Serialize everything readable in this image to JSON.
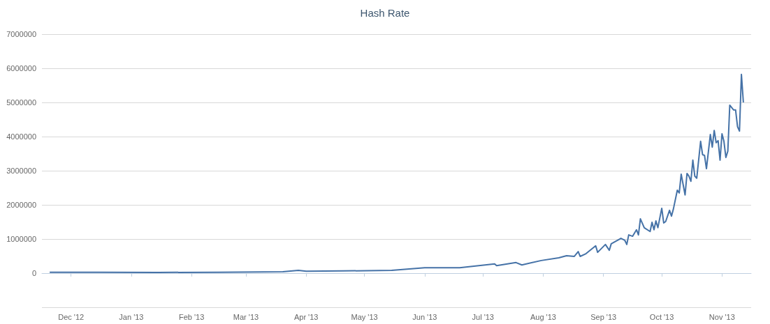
{
  "chart_data": {
    "type": "line",
    "title": "Hash Rate",
    "x": [
      "2012-11-20",
      "2012-12-15",
      "2013-01-15",
      "2013-02-15",
      "2013-03-10",
      "2013-03-20",
      "2013-03-28",
      "2013-04-01",
      "2013-04-20",
      "2013-05-15",
      "2013-06-01",
      "2013-06-19",
      "2013-07-07",
      "2013-07-08",
      "2013-07-18",
      "2013-07-21",
      "2013-07-31",
      "2013-08-09",
      "2013-08-13",
      "2013-08-17",
      "2013-08-19",
      "2013-08-20",
      "2013-08-23",
      "2013-08-28",
      "2013-08-29",
      "2013-09-02",
      "2013-09-04",
      "2013-09-05",
      "2013-09-10",
      "2013-09-12",
      "2013-09-13",
      "2013-09-14",
      "2013-09-16",
      "2013-09-18",
      "2013-09-19",
      "2013-09-20",
      "2013-09-22",
      "2013-09-25",
      "2013-09-26",
      "2013-09-27",
      "2013-09-28",
      "2013-09-29",
      "2013-10-01",
      "2013-10-02",
      "2013-10-03",
      "2013-10-05",
      "2013-10-06",
      "2013-10-07",
      "2013-10-09",
      "2013-10-10",
      "2013-10-11",
      "2013-10-13",
      "2013-10-14",
      "2013-10-15",
      "2013-10-16",
      "2013-10-17",
      "2013-10-18",
      "2013-10-19",
      "2013-10-21",
      "2013-10-22",
      "2013-10-23",
      "2013-10-24",
      "2013-10-26",
      "2013-10-27",
      "2013-10-28",
      "2013-10-29",
      "2013-10-30",
      "2013-10-31",
      "2013-11-01",
      "2013-11-02",
      "2013-11-03",
      "2013-11-04",
      "2013-11-05",
      "2013-11-07",
      "2013-11-08",
      "2013-11-09",
      "2013-11-10",
      "2013-11-11",
      "2013-11-12"
    ],
    "series": [
      {
        "color": "#4572a7",
        "values": [
          25000,
          25000,
          22000,
          25000,
          35000,
          40000,
          80000,
          55000,
          65000,
          80000,
          160000,
          160000,
          270000,
          220000,
          310000,
          240000,
          370000,
          450000,
          510000,
          490000,
          630000,
          490000,
          570000,
          800000,
          610000,
          840000,
          670000,
          860000,
          1020000,
          960000,
          840000,
          1120000,
          1080000,
          1270000,
          1120000,
          1590000,
          1330000,
          1220000,
          1490000,
          1270000,
          1530000,
          1330000,
          1900000,
          1470000,
          1510000,
          1840000,
          1670000,
          1880000,
          2430000,
          2350000,
          2900000,
          2290000,
          2920000,
          2840000,
          2690000,
          3310000,
          2840000,
          2780000,
          3860000,
          3470000,
          3450000,
          3060000,
          4060000,
          3690000,
          4180000,
          3820000,
          3880000,
          3310000,
          4080000,
          3860000,
          3390000,
          3570000,
          4920000,
          4780000,
          4780000,
          4290000,
          4160000,
          5820000,
          5000000
        ]
      }
    ],
    "xlim": [
      "2012-11-16",
      "2013-11-16"
    ],
    "xticks": [
      {
        "value": "2012-12-01",
        "label": "Dec '12"
      },
      {
        "value": "2013-01-01",
        "label": "Jan '13"
      },
      {
        "value": "2013-02-01",
        "label": "Feb '13"
      },
      {
        "value": "2013-03-01",
        "label": "Mar '13"
      },
      {
        "value": "2013-04-01",
        "label": "Apr '13"
      },
      {
        "value": "2013-05-01",
        "label": "May '13"
      },
      {
        "value": "2013-06-01",
        "label": "Jun '13"
      },
      {
        "value": "2013-07-01",
        "label": "Jul '13"
      },
      {
        "value": "2013-08-01",
        "label": "Aug '13"
      },
      {
        "value": "2013-09-01",
        "label": "Sep '13"
      },
      {
        "value": "2013-10-01",
        "label": "Oct '13"
      },
      {
        "value": "2013-11-01",
        "label": "Nov '13"
      }
    ],
    "ylim": [
      -1000000,
      7000000
    ],
    "yticks": [
      0,
      1000000,
      2000000,
      3000000,
      4000000,
      5000000,
      6000000,
      7000000
    ],
    "grid": "y",
    "marker": "none",
    "line_style": "solid"
  }
}
